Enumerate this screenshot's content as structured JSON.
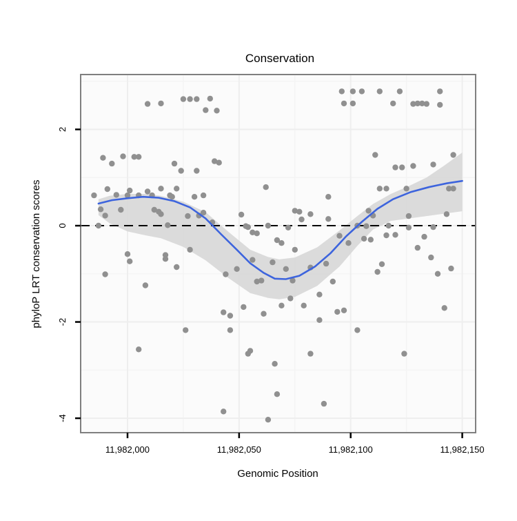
{
  "chart_data": {
    "type": "scatter",
    "title": "Conservation",
    "xlabel": "Genomic Position",
    "ylabel": "phyloP LRT conservation scores",
    "xlim": [
      11981979,
      11982156
    ],
    "ylim": [
      -4.3,
      3.14
    ],
    "grid": true,
    "x_ticks": [
      {
        "value": 11982000,
        "label": "11,982,000"
      },
      {
        "value": 11982050,
        "label": "11,982,050"
      },
      {
        "value": 11982100,
        "label": "11,982,100"
      },
      {
        "value": 11982150,
        "label": "11,982,150"
      }
    ],
    "y_ticks": [
      {
        "value": 2,
        "label": "2"
      },
      {
        "value": 0,
        "label": "0"
      },
      {
        "value": -2,
        "label": "-2"
      },
      {
        "value": -4,
        "label": "-4"
      }
    ],
    "x_minor_gridlines": [
      11982025,
      11982075,
      11982125
    ],
    "y_minor_gridlines": [
      3,
      1,
      -1,
      -3
    ],
    "reference_line_y": 0,
    "colors": {
      "point": "#909090",
      "smooth_line": "#3d64dd",
      "confidence_band": "#d7d7d7",
      "reference_line": "#000000",
      "panel_background": "#fbfbfb",
      "grid_major": "#eeeeee",
      "grid_minor": "#f4f4f4",
      "panel_border": "#7f7f7f"
    },
    "points": [
      [
        11982009,
        2.53
      ],
      [
        11982015,
        2.54
      ],
      [
        11982025,
        2.63
      ],
      [
        11982028,
        2.63
      ],
      [
        11982031,
        2.63
      ],
      [
        11982037,
        2.64
      ],
      [
        11982035,
        2.4
      ],
      [
        11982040,
        2.39
      ],
      [
        11981989,
        1.41
      ],
      [
        11981993,
        1.29
      ],
      [
        11981998,
        1.44
      ],
      [
        11982003,
        1.43
      ],
      [
        11982005,
        1.43
      ],
      [
        11982021,
        1.29
      ],
      [
        11982024,
        1.14
      ],
      [
        11982031,
        1.14
      ],
      [
        11982039,
        1.34
      ],
      [
        11982041,
        1.31
      ],
      [
        11981985,
        0.63
      ],
      [
        11981991,
        0.76
      ],
      [
        11981995,
        0.64
      ],
      [
        11982000,
        0.63
      ],
      [
        11982001,
        0.73
      ],
      [
        11982005,
        0.63
      ],
      [
        11982009,
        0.71
      ],
      [
        11982011,
        0.63
      ],
      [
        11982015,
        0.77
      ],
      [
        11982019,
        0.63
      ],
      [
        11982020,
        0.6
      ],
      [
        11982022,
        0.77
      ],
      [
        11982030,
        0.6
      ],
      [
        11982034,
        0.63
      ],
      [
        11982062,
        0.8
      ],
      [
        11982096,
        2.79
      ],
      [
        11982101,
        2.79
      ],
      [
        11982105,
        2.79
      ],
      [
        11982113,
        2.79
      ],
      [
        11982122,
        2.79
      ],
      [
        11982140,
        2.79
      ],
      [
        11982097,
        2.54
      ],
      [
        11982101,
        2.54
      ],
      [
        11982119,
        2.54
      ],
      [
        11982128,
        2.53
      ],
      [
        11982130,
        2.54
      ],
      [
        11982132,
        2.54
      ],
      [
        11982134,
        2.53
      ],
      [
        11982140,
        2.51
      ],
      [
        11982111,
        1.47
      ],
      [
        11982120,
        1.21
      ],
      [
        11982123,
        1.21
      ],
      [
        11982128,
        1.24
      ],
      [
        11982137,
        1.27
      ],
      [
        11982146,
        1.47
      ],
      [
        11982113,
        0.77
      ],
      [
        11982116,
        0.77
      ],
      [
        11982125,
        0.77
      ],
      [
        11982144,
        0.77
      ],
      [
        11982146,
        0.77
      ],
      [
        11981988,
        0.34
      ],
      [
        11981990,
        0.21
      ],
      [
        11981997,
        0.33
      ],
      [
        11982012,
        0.33
      ],
      [
        11982014,
        0.29
      ],
      [
        11982015,
        0.24
      ],
      [
        11981987,
        0.0
      ],
      [
        11982018,
        0.01
      ],
      [
        11982032,
        0.21
      ],
      [
        11982034,
        0.27
      ],
      [
        11982027,
        0.2
      ],
      [
        11982038,
        0.07
      ],
      [
        11982000,
        -0.59
      ],
      [
        11982001,
        -0.74
      ],
      [
        11982017,
        -0.61
      ],
      [
        11982017,
        -0.69
      ],
      [
        11982022,
        -0.86
      ],
      [
        11982028,
        -0.5
      ],
      [
        11981990,
        -1.01
      ],
      [
        11982008,
        -1.24
      ],
      [
        11982090,
        0.6
      ],
      [
        11982051,
        0.23
      ],
      [
        11982075,
        0.31
      ],
      [
        11982077,
        0.29
      ],
      [
        11982078,
        0.13
      ],
      [
        11982082,
        0.24
      ],
      [
        11982090,
        0.14
      ],
      [
        11982053,
        -0.01
      ],
      [
        11982054,
        -0.03
      ],
      [
        11982063,
        0.0
      ],
      [
        11982072,
        -0.04
      ],
      [
        11982056,
        -0.14
      ],
      [
        11982058,
        -0.16
      ],
      [
        11982067,
        -0.3
      ],
      [
        11982069,
        -0.36
      ],
      [
        11982075,
        -0.5
      ],
      [
        11982056,
        -0.71
      ],
      [
        11982065,
        -0.76
      ],
      [
        11982071,
        -0.9
      ],
      [
        11982082,
        -0.87
      ],
      [
        11982089,
        -0.79
      ],
      [
        11982049,
        -0.9
      ],
      [
        11982044,
        -1.01
      ],
      [
        11982058,
        -1.16
      ],
      [
        11982060,
        -1.14
      ],
      [
        11982074,
        -1.14
      ],
      [
        11982092,
        -1.16
      ],
      [
        11982086,
        -1.43
      ],
      [
        11982073,
        -1.51
      ],
      [
        11982069,
        -1.66
      ],
      [
        11982079,
        -1.66
      ],
      [
        11982052,
        -1.69
      ],
      [
        11982043,
        -1.8
      ],
      [
        11982046,
        -1.87
      ],
      [
        11982061,
        -1.83
      ],
      [
        11982094,
        -1.79
      ],
      [
        11982097,
        -1.76
      ],
      [
        11982095,
        -0.21
      ],
      [
        11982099,
        -0.36
      ],
      [
        11982108,
        0.31
      ],
      [
        11982110,
        0.21
      ],
      [
        11982126,
        0.2
      ],
      [
        11982143,
        0.24
      ],
      [
        11982103,
        0.0
      ],
      [
        11982107,
        -0.01
      ],
      [
        11982117,
        0.0
      ],
      [
        11982126,
        -0.04
      ],
      [
        11982137,
        -0.03
      ],
      [
        11982116,
        -0.2
      ],
      [
        11982120,
        -0.19
      ],
      [
        11982106,
        -0.27
      ],
      [
        11982109,
        -0.29
      ],
      [
        11982133,
        -0.23
      ],
      [
        11982130,
        -0.46
      ],
      [
        11982136,
        -0.66
      ],
      [
        11982114,
        -0.8
      ],
      [
        11982112,
        -0.96
      ],
      [
        11982139,
        -1.0
      ],
      [
        11982145,
        -0.89
      ],
      [
        11982142,
        -1.71
      ],
      [
        11982026,
        -2.17
      ],
      [
        11982005,
        -2.57
      ],
      [
        11982046,
        -2.17
      ],
      [
        11982054,
        -2.66
      ],
      [
        11982055,
        -2.6
      ],
      [
        11982066,
        -2.87
      ],
      [
        11982086,
        -1.96
      ],
      [
        11982082,
        -2.66
      ],
      [
        11982067,
        -3.5
      ],
      [
        11982043,
        -3.86
      ],
      [
        11982063,
        -4.03
      ],
      [
        11982088,
        -3.7
      ],
      [
        11982103,
        -2.17
      ],
      [
        11982124,
        -2.66
      ]
    ],
    "smooth_line": [
      [
        11981987,
        0.46
      ],
      [
        11981993,
        0.53
      ],
      [
        11982000,
        0.57
      ],
      [
        11982007,
        0.6
      ],
      [
        11982014,
        0.58
      ],
      [
        11982021,
        0.51
      ],
      [
        11982028,
        0.38
      ],
      [
        11982035,
        0.15
      ],
      [
        11982042,
        -0.18
      ],
      [
        11982049,
        -0.5
      ],
      [
        11982055,
        -0.78
      ],
      [
        11982061,
        -0.98
      ],
      [
        11982066,
        -1.1
      ],
      [
        11982071,
        -1.11
      ],
      [
        11982077,
        -1.04
      ],
      [
        11982084,
        -0.85
      ],
      [
        11982091,
        -0.57
      ],
      [
        11982098,
        -0.22
      ],
      [
        11982105,
        0.08
      ],
      [
        11982112,
        0.35
      ],
      [
        11982119,
        0.55
      ],
      [
        11982127,
        0.7
      ],
      [
        11982135,
        0.8
      ],
      [
        11982143,
        0.88
      ],
      [
        11982150,
        0.93
      ]
    ],
    "confidence_band": {
      "x": [
        11981987,
        11981992,
        11982000,
        11982008,
        11982015,
        11982025,
        11982035,
        11982045,
        11982055,
        11982063,
        11982068,
        11982075,
        11982085,
        11982095,
        11982103,
        11982110,
        11982118,
        11982126,
        11982134,
        11982142,
        11982150
      ],
      "upper": [
        0.55,
        0.62,
        0.66,
        0.66,
        0.62,
        0.5,
        0.28,
        -0.12,
        -0.5,
        -0.65,
        -0.7,
        -0.66,
        -0.45,
        -0.1,
        0.2,
        0.45,
        0.66,
        0.82,
        1.0,
        1.25,
        1.52
      ],
      "lower": [
        0.22,
        0.05,
        -0.12,
        -0.2,
        -0.26,
        -0.44,
        -0.72,
        -1.08,
        -1.4,
        -1.5,
        -1.53,
        -1.48,
        -1.25,
        -0.85,
        -0.42,
        -0.08,
        0.1,
        0.15,
        0.2,
        0.25,
        0.3
      ]
    }
  }
}
